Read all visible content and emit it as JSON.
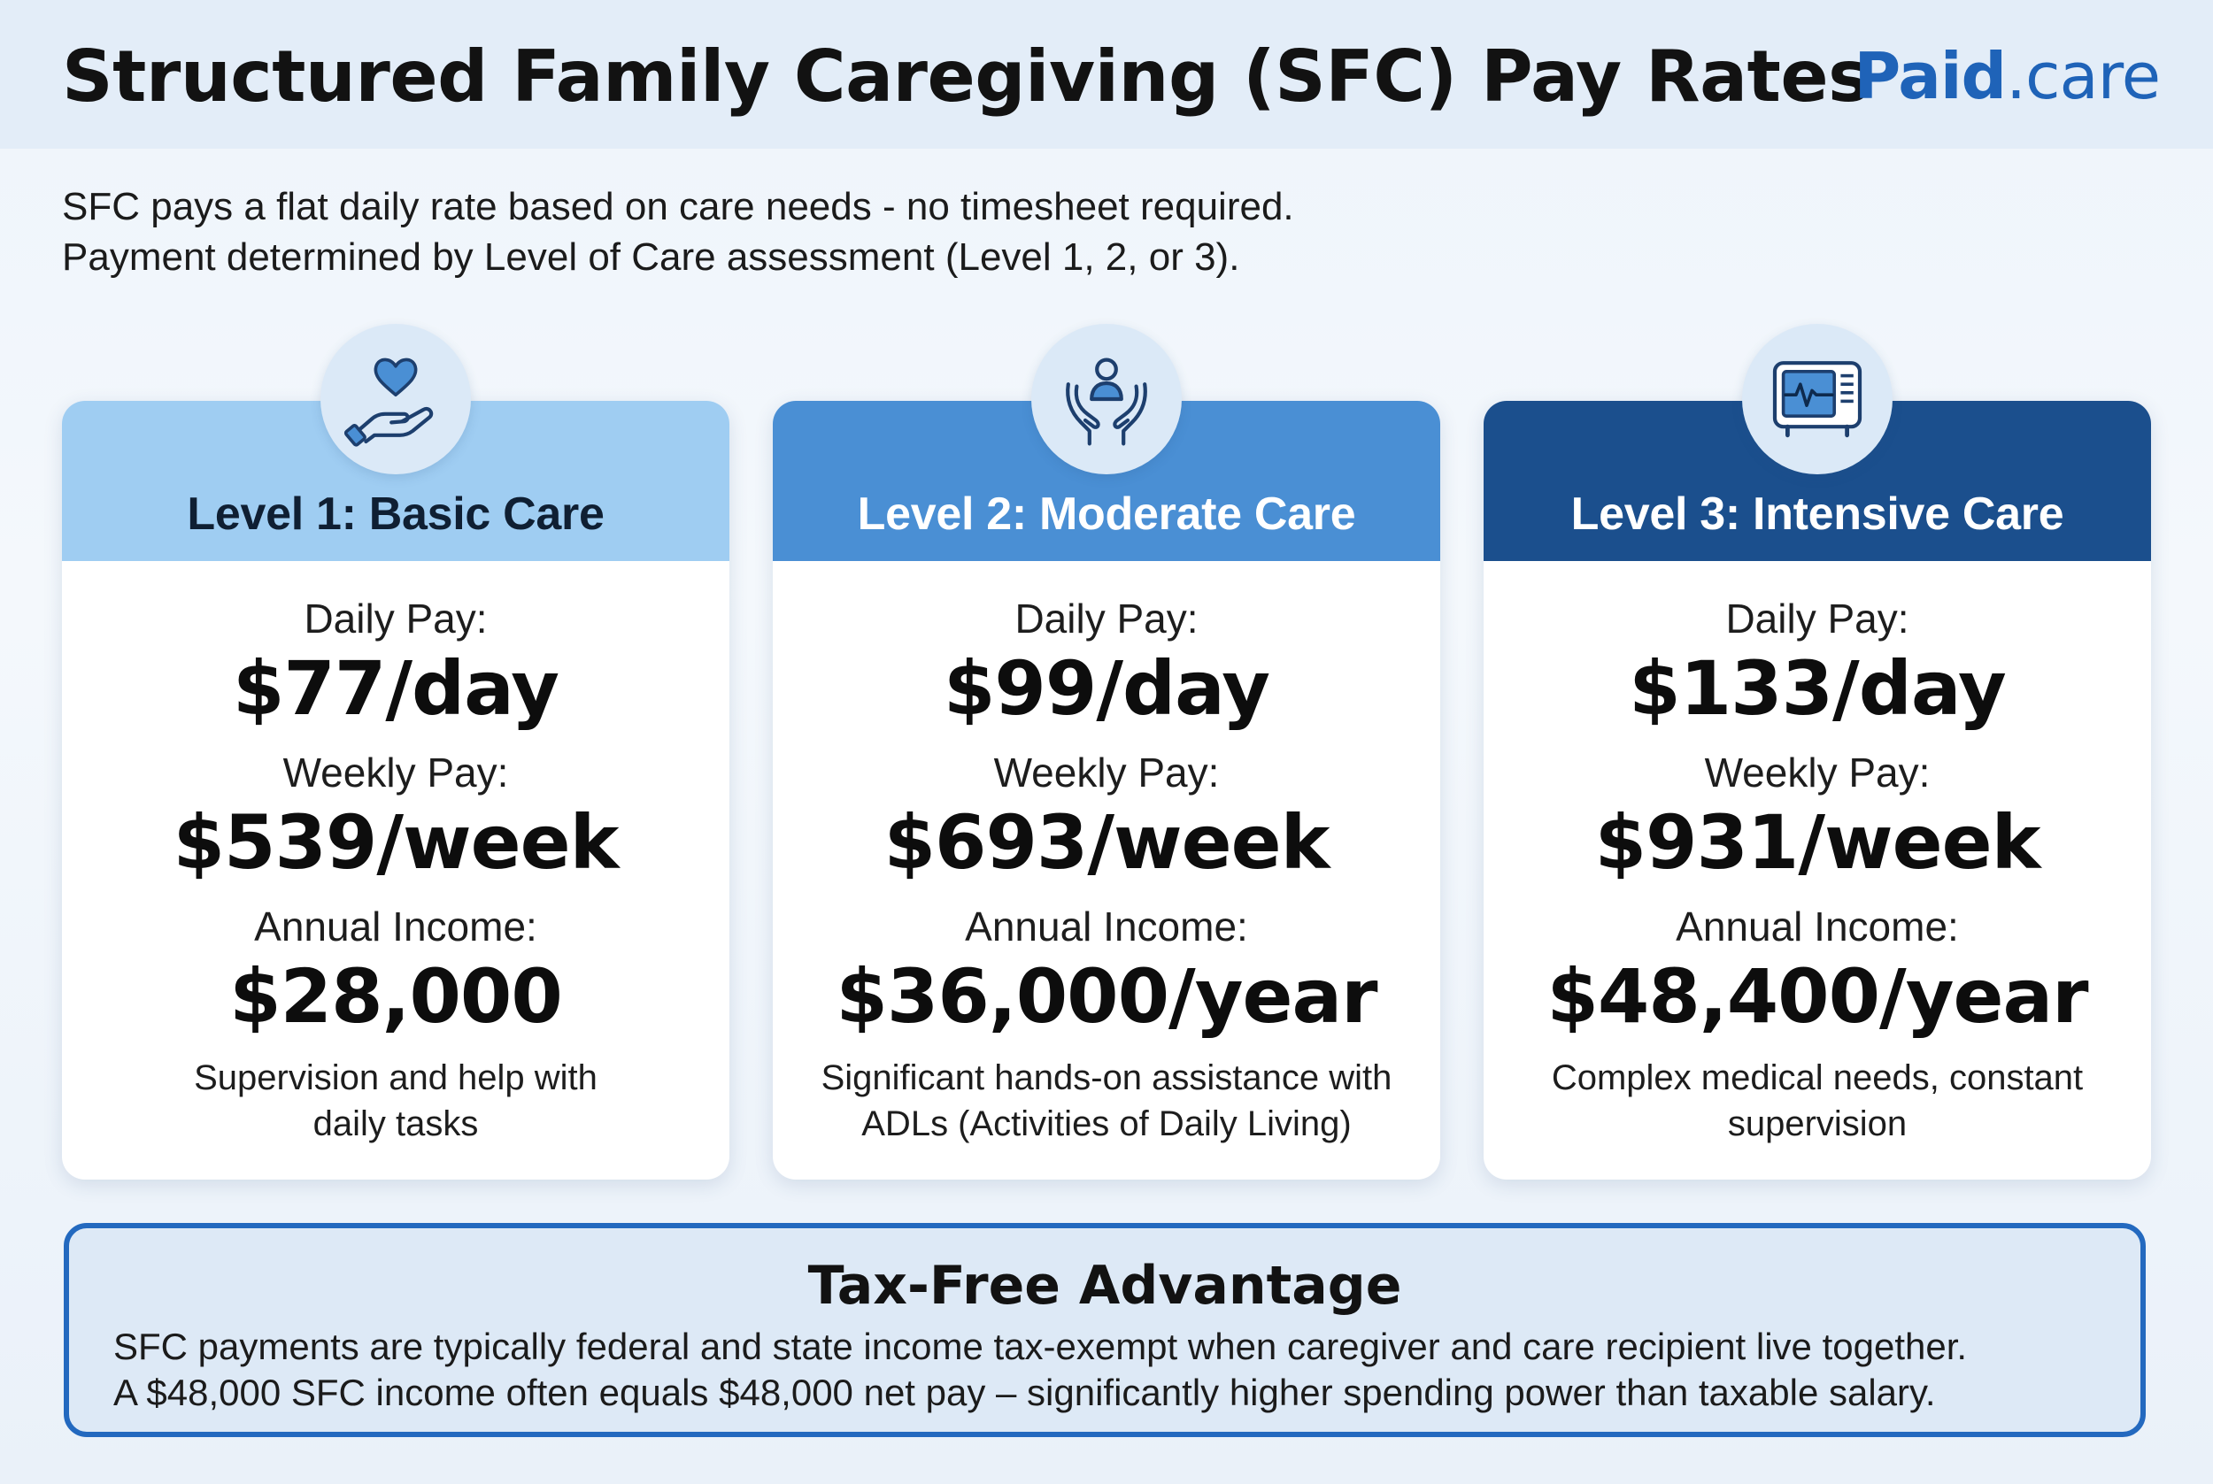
{
  "header": {
    "title": "Structured Family Caregiving (SFC) Pay Rates",
    "logo_bold": "Paid",
    "logo_rest": ".care"
  },
  "intro": {
    "line1": "SFC pays a flat daily rate based on care needs - no timesheet required.",
    "line2": "Payment determined by Level of Care assessment (Level 1, 2, or 3)."
  },
  "cards": [
    {
      "icon": "heart-hand-icon",
      "title": "Level 1: Basic Care",
      "daily_label": "Daily Pay:",
      "daily_value": "$77/day",
      "weekly_label": "Weekly Pay:",
      "weekly_value": "$539/week",
      "annual_label": "Annual Income:",
      "annual_value": "$28,000",
      "desc_line1": "Supervision and help with",
      "desc_line2": "daily tasks"
    },
    {
      "icon": "caring-hands-person-icon",
      "title": "Level 2: Moderate Care",
      "daily_label": "Daily Pay:",
      "daily_value": "$99/day",
      "weekly_label": "Weekly Pay:",
      "weekly_value": "$693/week",
      "annual_label": "Annual Income:",
      "annual_value": "$36,000/year",
      "desc_line1": "Significant hands-on assistance with",
      "desc_line2": "ADLs (Activities of Daily Living)"
    },
    {
      "icon": "medical-monitor-icon",
      "title": "Level 3: Intensive Care",
      "daily_label": "Daily Pay:",
      "daily_value": "$133/day",
      "weekly_label": "Weekly Pay:",
      "weekly_value": "$931/week",
      "annual_label": "Annual Income:",
      "annual_value": "$48,400/year",
      "desc_line1": "Complex medical needs, constant",
      "desc_line2": "supervision"
    }
  ],
  "tax": {
    "title": "Tax-Free Advantage",
    "line1": "SFC payments are typically federal and state income tax-exempt when caregiver and care recipient live together.",
    "line2": "A $48,000 SFC income often equals $48,000 net pay – significantly higher spending power than taxable salary."
  },
  "colors": {
    "level1": "#9fcdf2",
    "level2": "#4a8fd4",
    "level3": "#1b4f8d",
    "brand": "#1f63b8"
  }
}
